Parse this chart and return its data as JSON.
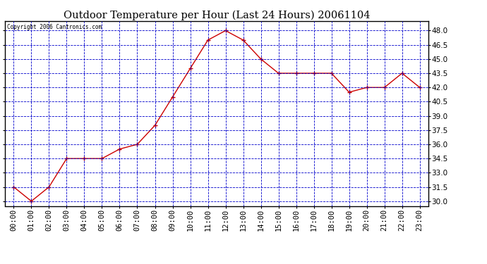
{
  "title": "Outdoor Temperature per Hour (Last 24 Hours) 20061104",
  "copyright_text": "Copyright 2006 Cantronics.com",
  "hours": [
    "00:00",
    "01:00",
    "02:00",
    "03:00",
    "04:00",
    "05:00",
    "06:00",
    "07:00",
    "08:00",
    "09:00",
    "10:00",
    "11:00",
    "12:00",
    "13:00",
    "14:00",
    "15:00",
    "16:00",
    "17:00",
    "18:00",
    "19:00",
    "20:00",
    "21:00",
    "22:00",
    "23:00"
  ],
  "temps": [
    31.5,
    30.0,
    31.5,
    34.5,
    34.5,
    34.5,
    35.5,
    36.0,
    38.0,
    41.0,
    44.0,
    47.0,
    48.0,
    47.0,
    45.0,
    43.5,
    43.5,
    43.5,
    43.5,
    41.5,
    42.0,
    42.0,
    43.5,
    42.0
  ],
  "line_color": "#cc0000",
  "marker_color": "#cc0000",
  "bg_color": "#ffffff",
  "plot_bg_color": "#ffffff",
  "grid_color": "#0000cc",
  "title_color": "#000000",
  "ylim_min": 29.5,
  "ylim_max": 49.0,
  "ytick_min": 30.0,
  "ytick_max": 48.0,
  "ytick_step": 1.5,
  "border_color": "#000000",
  "title_fontsize": 10.5,
  "tick_fontsize": 7.5,
  "copyright_fontsize": 5.5
}
